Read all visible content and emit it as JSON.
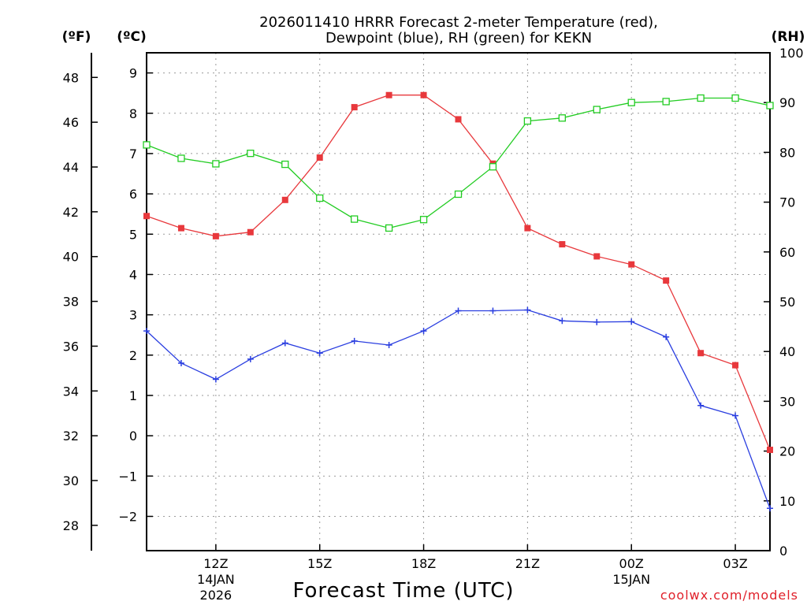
{
  "chart_data": {
    "type": "line",
    "title": "2026011410 HRRR Forecast 2-meter Temperature (red),",
    "subtitle": "Dewpoint (blue), RH (green) for KEKN",
    "xlabel": "Forecast Time (UTC)",
    "credit": "coolwx.com/models",
    "units": {
      "fahrenheit": "(ºF)",
      "celsius": "(ºC)",
      "rh": "(RH)"
    },
    "x_hours": [
      10,
      11,
      12,
      13,
      14,
      15,
      16,
      17,
      18,
      19,
      20,
      21,
      22,
      23,
      24,
      25,
      26,
      27,
      28
    ],
    "x_range": [
      10,
      28
    ],
    "x_ticks": [
      {
        "hour": 12,
        "label": "12Z",
        "date1": "14JAN",
        "date2": "2026"
      },
      {
        "hour": 15,
        "label": "15Z",
        "date1": "",
        "date2": ""
      },
      {
        "hour": 18,
        "label": "18Z",
        "date1": "",
        "date2": ""
      },
      {
        "hour": 21,
        "label": "21Z",
        "date1": "",
        "date2": ""
      },
      {
        "hour": 24,
        "label": "00Z",
        "date1": "15JAN",
        "date2": ""
      },
      {
        "hour": 27,
        "label": "03Z",
        "date1": "",
        "date2": ""
      }
    ],
    "celsius_range": [
      -2.85,
      9.5
    ],
    "celsius_ticks": [
      -2,
      -1,
      0,
      1,
      2,
      3,
      4,
      5,
      6,
      7,
      8,
      9
    ],
    "fahrenheit_ticks": [
      28,
      30,
      32,
      34,
      36,
      38,
      40,
      42,
      44,
      46,
      48
    ],
    "rh_range": [
      0,
      100
    ],
    "rh_ticks": [
      0,
      10,
      20,
      30,
      40,
      50,
      60,
      70,
      80,
      90,
      100
    ],
    "series": [
      {
        "name": "Temperature",
        "unit": "C",
        "color": "#e8383c",
        "marker": "filled-square",
        "values": [
          5.45,
          5.15,
          4.95,
          5.05,
          5.85,
          6.9,
          8.15,
          8.45,
          8.45,
          7.85,
          6.75,
          5.15,
          4.75,
          4.45,
          4.25,
          3.85,
          2.05,
          1.75,
          -0.35
        ]
      },
      {
        "name": "Dewpoint",
        "unit": "C",
        "color": "#2a3ee0",
        "marker": "plus",
        "values": [
          2.6,
          1.8,
          1.4,
          1.9,
          2.3,
          2.05,
          2.35,
          2.25,
          2.6,
          3.1,
          3.1,
          3.12,
          2.85,
          2.82,
          2.83,
          2.45,
          0.75,
          0.5,
          -1.8
        ]
      },
      {
        "name": "RH",
        "unit": "%",
        "color": "#22cc22",
        "marker": "open-square",
        "values": [
          81.5,
          78.8,
          77.7,
          79.8,
          77.6,
          70.8,
          66.6,
          64.8,
          66.5,
          71.6,
          77.1,
          86.3,
          86.9,
          88.6,
          90.0,
          90.2,
          90.9,
          90.9,
          89.4
        ]
      }
    ]
  }
}
